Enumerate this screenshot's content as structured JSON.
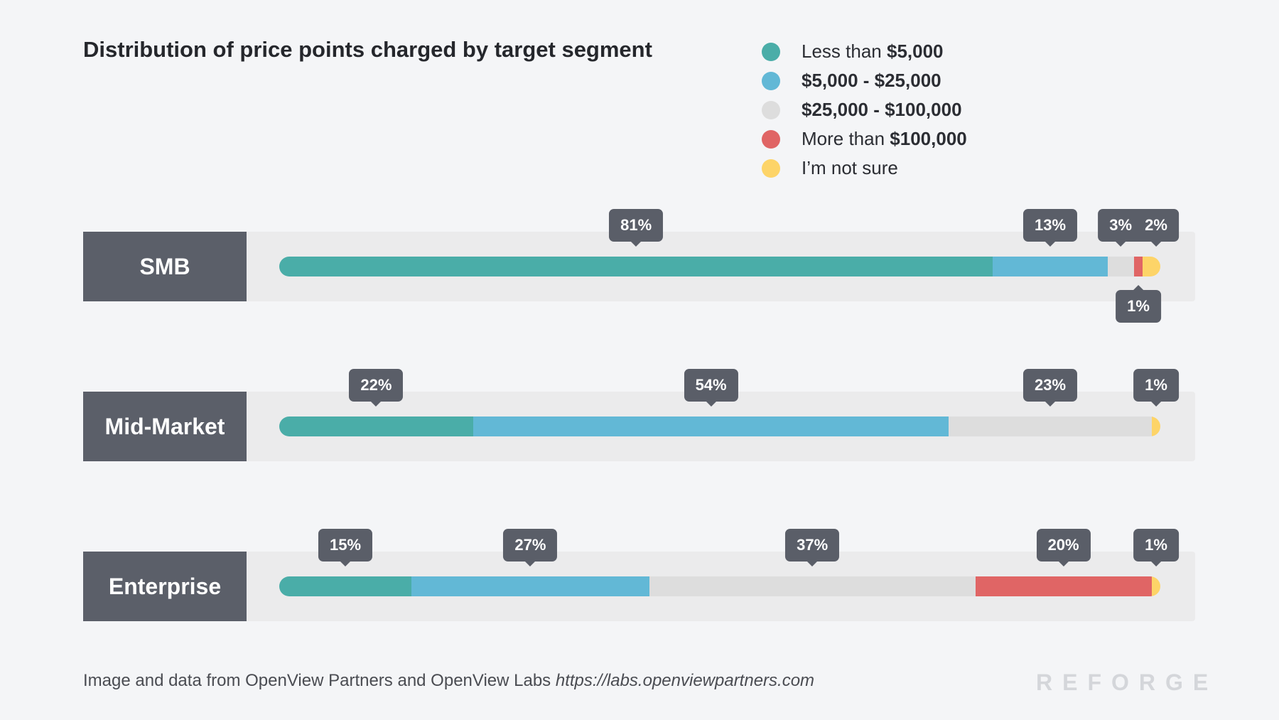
{
  "chart_data": {
    "type": "bar",
    "orientation": "horizontal",
    "stacked": true,
    "title": "Distribution of price points charged by target segment",
    "legend_position": "top-right",
    "categories": [
      "SMB",
      "Mid-Market",
      "Enterprise"
    ],
    "series": [
      {
        "name_plain": "Less than ",
        "name_bold": "$5,000",
        "color": "#4aada8",
        "values": [
          81,
          22,
          15
        ]
      },
      {
        "name_plain": "",
        "name_bold": "$5,000 - $25,000",
        "color": "#62b8d6",
        "values": [
          13,
          54,
          27
        ]
      },
      {
        "name_plain": "",
        "name_bold": "$25,000 - $100,000",
        "color": "#dddddd",
        "values": [
          3,
          23,
          37
        ]
      },
      {
        "name_plain": "More than ",
        "name_bold": "$100,000",
        "color": "#e06565",
        "values": [
          1,
          0,
          20
        ]
      },
      {
        "name_plain": "I’m not sure",
        "name_bold": "",
        "color": "#fdd468",
        "values": [
          2,
          1,
          1
        ]
      }
    ],
    "unit": "%"
  },
  "footer": {
    "text": "Image and data from OpenView Partners and OpenView Labs ",
    "url": "https://labs.openviewpartners.com"
  },
  "brand": "REFORGE"
}
